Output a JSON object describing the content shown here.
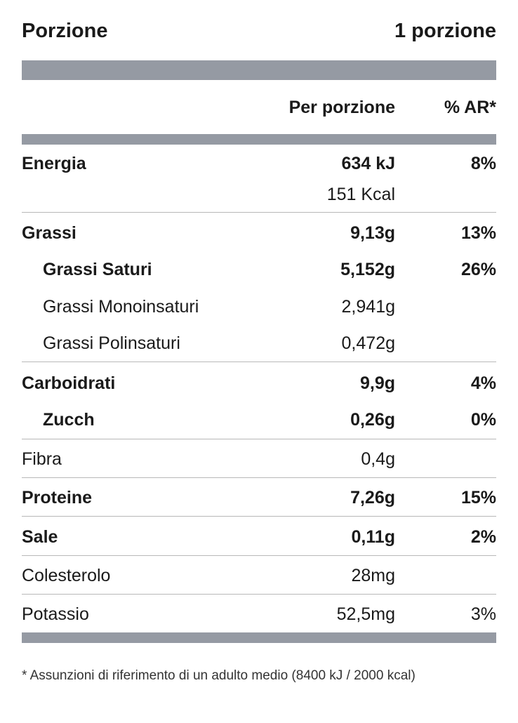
{
  "serving": {
    "label": "Porzione",
    "value": "1 porzione"
  },
  "columns": {
    "per_serving": "Per porzione",
    "ri": "% AR*"
  },
  "rows": [
    {
      "name": "Energia",
      "value": "634 kJ",
      "sub_value": "151 Kcal",
      "ri": "8%"
    },
    {
      "name": "Grassi",
      "value": "9,13g",
      "ri": "13%"
    },
    {
      "name": "Grassi Saturi",
      "value": "5,152g",
      "ri": "26%"
    },
    {
      "name": "Grassi Monoinsaturi",
      "value": "2,941g",
      "ri": ""
    },
    {
      "name": "Grassi Polinsaturi",
      "value": "0,472g",
      "ri": ""
    },
    {
      "name": "Carboidrati",
      "value": "9,9g",
      "ri": "4%"
    },
    {
      "name": "Zucch",
      "value": "0,26g",
      "ri": "0%"
    },
    {
      "name": "Fibra",
      "value": "0,4g",
      "ri": ""
    },
    {
      "name": "Proteine",
      "value": "7,26g",
      "ri": "15%"
    },
    {
      "name": "Sale",
      "value": "0,11g",
      "ri": "2%"
    },
    {
      "name": "Colesterolo",
      "value": "28mg",
      "ri": ""
    },
    {
      "name": "Potassio",
      "value": "52,5mg",
      "ri": "3%"
    }
  ],
  "footnote": "* Assunzioni di riferimento di un adulto medio (8400 kJ / 2000 kcal)",
  "colors": {
    "bar": "#959aa3",
    "text": "#1a1a1a",
    "divider": "#b8b8b8"
  }
}
